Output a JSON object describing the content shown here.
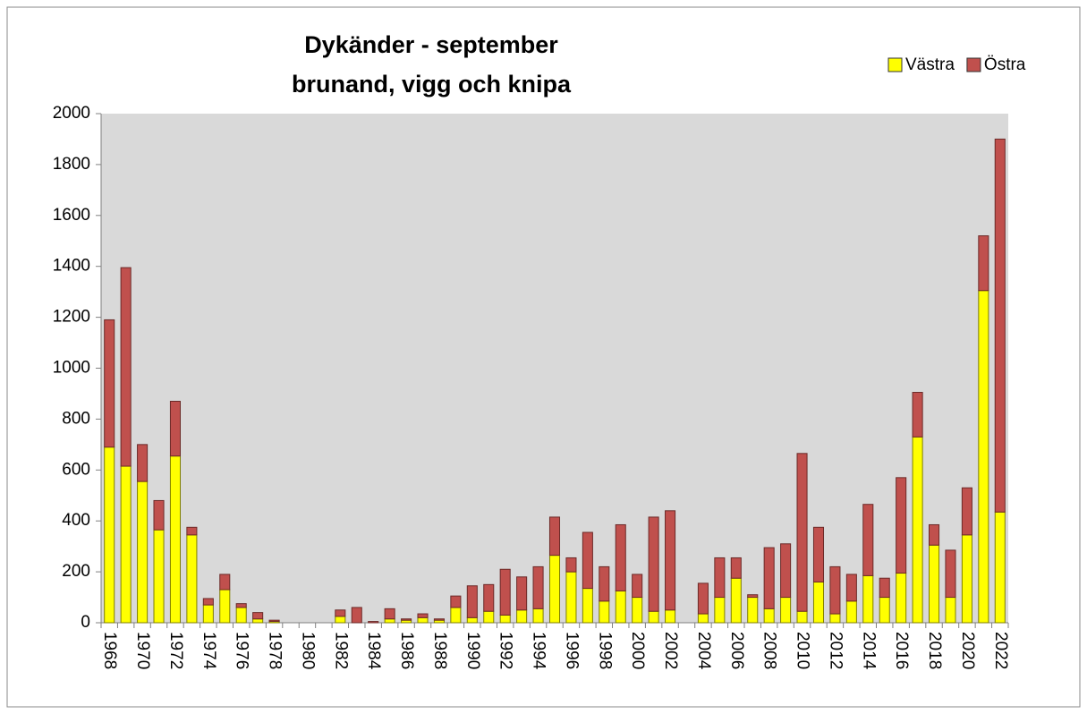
{
  "chart_data": {
    "type": "stacked-bar",
    "title_lines": [
      "Dykänder - september",
      "brunand,  vigg och knipa"
    ],
    "categories": [
      "1968",
      null,
      "1970",
      null,
      "1972",
      null,
      "1974",
      null,
      "1976",
      null,
      "1978",
      null,
      "1980",
      null,
      "1982",
      null,
      "1984",
      null,
      "1986",
      null,
      "1988",
      null,
      "1990",
      null,
      "1992",
      null,
      "1994",
      null,
      "1996",
      null,
      "1998",
      null,
      "2000",
      null,
      "2002",
      null,
      "2004",
      null,
      "2006",
      null,
      "2008",
      null,
      "2010",
      null,
      "2012",
      null,
      "2014",
      null,
      "2016",
      null,
      "2018",
      null,
      "2020",
      null,
      "2022"
    ],
    "series": [
      {
        "name": "Västra",
        "color": "#ffff00",
        "values": [
          690,
          615,
          555,
          365,
          655,
          345,
          70,
          130,
          60,
          15,
          5,
          0,
          0,
          0,
          25,
          0,
          0,
          15,
          10,
          20,
          10,
          60,
          20,
          45,
          30,
          50,
          55,
          265,
          200,
          135,
          85,
          125,
          100,
          45,
          50,
          0,
          35,
          100,
          175,
          100,
          55,
          100,
          45,
          160,
          35,
          85,
          185,
          100,
          195,
          730,
          305,
          100,
          345,
          1305,
          435
        ]
      },
      {
        "name": "Östra",
        "color": "#c0504d",
        "values": [
          500,
          780,
          145,
          115,
          215,
          30,
          25,
          60,
          15,
          25,
          5,
          0,
          0,
          0,
          25,
          60,
          5,
          40,
          5,
          15,
          5,
          45,
          125,
          105,
          180,
          130,
          165,
          150,
          55,
          220,
          135,
          260,
          90,
          370,
          390,
          0,
          120,
          155,
          80,
          10,
          240,
          210,
          620,
          215,
          185,
          105,
          280,
          75,
          375,
          175,
          80,
          185,
          185,
          215,
          1465
        ]
      }
    ],
    "ylim": [
      0,
      2000
    ],
    "yticks": [
      0,
      200,
      400,
      600,
      800,
      1000,
      1200,
      1400,
      1600,
      1800,
      2000
    ],
    "legend": "top-right"
  }
}
